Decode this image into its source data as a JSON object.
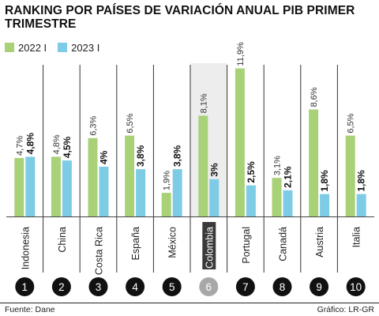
{
  "chart_data": {
    "type": "bar",
    "title": "RANKING POR PAÍSES DE VARIACIÓN ANUAL PIB PRIMER TRIMESTRE",
    "categories": [
      "Indonesia",
      "China",
      "Costa Rica",
      "España",
      "México",
      "Colombia",
      "Portugal",
      "Canadá",
      "Austria",
      "Italia"
    ],
    "ranks": [
      "1",
      "2",
      "3",
      "4",
      "5",
      "6",
      "7",
      "8",
      "9",
      "10"
    ],
    "highlight_index": 5,
    "series": [
      {
        "name": "2022 I",
        "color": "#a9d178",
        "values": [
          4.7,
          4.8,
          6.3,
          6.5,
          1.9,
          8.1,
          11.9,
          3.1,
          8.6,
          6.5
        ],
        "labels": [
          "4,7%",
          "4,8%",
          "6,3%",
          "6,5%",
          "1,9%",
          "8,1%",
          "11,9%",
          "3,1%",
          "8,6%",
          "6,5%"
        ]
      },
      {
        "name": "2023 I",
        "color": "#7ecbe6",
        "values": [
          4.8,
          4.5,
          4.0,
          3.8,
          3.8,
          3.0,
          2.5,
          2.1,
          1.8,
          1.8
        ],
        "labels": [
          "4,8%",
          "4,5%",
          "4%",
          "3,8%",
          "3,8%",
          "3%",
          "2,5%",
          "2,1%",
          "1,8%",
          "1,8%"
        ]
      }
    ],
    "ylim": [
      0,
      12
    ],
    "xlabel": "",
    "ylabel": ""
  },
  "footer": {
    "source": "Fuente: Dane",
    "credit": "Gráfico: LR-GR"
  }
}
